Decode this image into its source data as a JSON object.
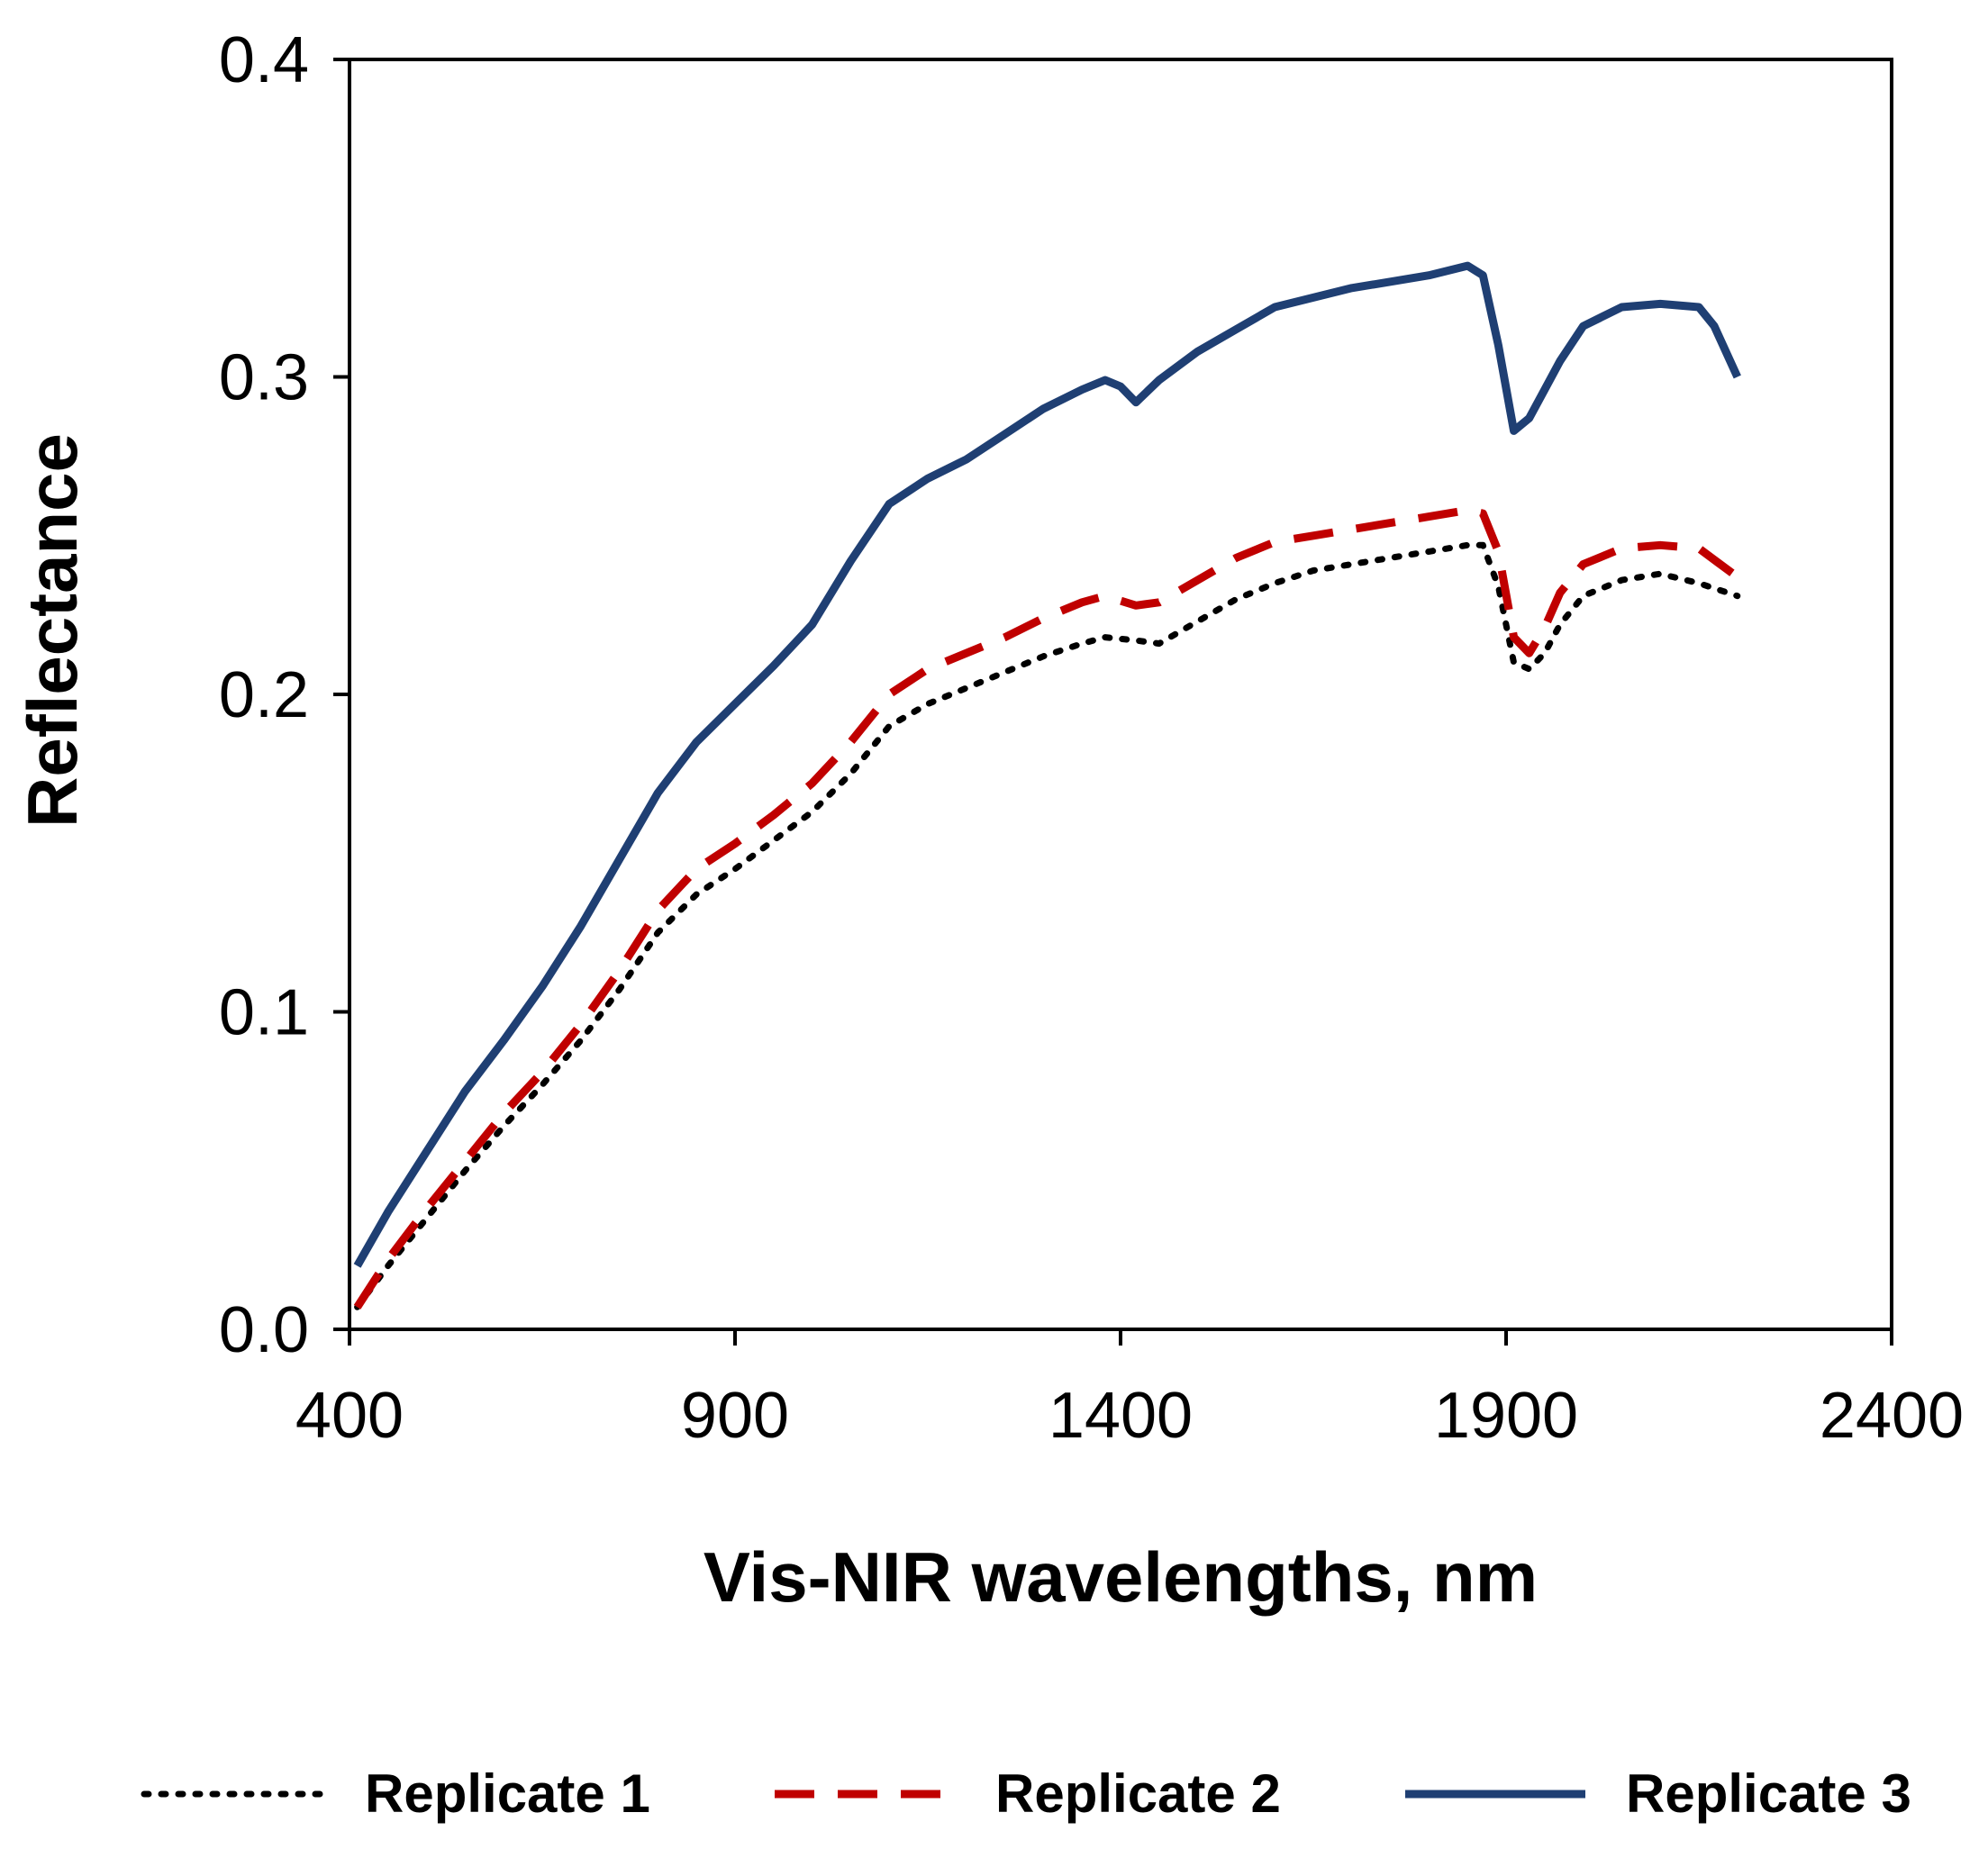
{
  "chart_data": {
    "type": "line",
    "title": "",
    "xlabel": "Vis-NIR wavelengths, nm",
    "ylabel": "Reflectance",
    "xlim": [
      400,
      2400
    ],
    "ylim": [
      0,
      0.4
    ],
    "x_ticks": [
      400,
      900,
      1400,
      1900,
      2400
    ],
    "x_tick_labels": [
      "400",
      "900",
      "1400",
      "1900",
      "2400"
    ],
    "y_ticks": [
      0,
      0.1,
      0.2,
      0.3,
      0.4
    ],
    "y_tick_labels": [
      "0.0",
      "0.1",
      "0.2",
      "0.3",
      "0.4"
    ],
    "grid": false,
    "legend_position": "bottom",
    "series": [
      {
        "name": "Replicate 1",
        "color": "#000000",
        "style": "dotted",
        "x": [
          410,
          450,
          500,
          550,
          600,
          650,
          700,
          750,
          800,
          850,
          900,
          950,
          1000,
          1050,
          1100,
          1150,
          1200,
          1250,
          1300,
          1350,
          1380,
          1420,
          1450,
          1500,
          1550,
          1600,
          1650,
          1700,
          1750,
          1800,
          1850,
          1870,
          1890,
          1910,
          1930,
          1950,
          1970,
          2000,
          2050,
          2100,
          2150,
          2200
        ],
        "y": [
          0.007,
          0.02,
          0.035,
          0.05,
          0.064,
          0.077,
          0.091,
          0.107,
          0.125,
          0.137,
          0.145,
          0.154,
          0.163,
          0.175,
          0.19,
          0.197,
          0.202,
          0.207,
          0.212,
          0.216,
          0.218,
          0.217,
          0.216,
          0.223,
          0.23,
          0.235,
          0.239,
          0.241,
          0.243,
          0.245,
          0.247,
          0.247,
          0.234,
          0.21,
          0.208,
          0.213,
          0.222,
          0.231,
          0.236,
          0.238,
          0.235,
          0.231
        ]
      },
      {
        "name": "Replicate 2",
        "color": "#c00000",
        "style": "dashed",
        "x": [
          410,
          450,
          500,
          550,
          600,
          650,
          700,
          750,
          800,
          850,
          900,
          950,
          1000,
          1050,
          1100,
          1150,
          1200,
          1250,
          1300,
          1350,
          1380,
          1420,
          1450,
          1500,
          1550,
          1600,
          1650,
          1700,
          1750,
          1800,
          1850,
          1870,
          1890,
          1910,
          1930,
          1950,
          1970,
          2000,
          2050,
          2100,
          2150,
          2200
        ],
        "y": [
          0.007,
          0.022,
          0.038,
          0.053,
          0.068,
          0.081,
          0.096,
          0.113,
          0.132,
          0.145,
          0.153,
          0.162,
          0.172,
          0.185,
          0.2,
          0.208,
          0.213,
          0.218,
          0.224,
          0.229,
          0.231,
          0.228,
          0.229,
          0.236,
          0.243,
          0.248,
          0.25,
          0.252,
          0.254,
          0.256,
          0.258,
          0.257,
          0.245,
          0.218,
          0.213,
          0.221,
          0.232,
          0.241,
          0.246,
          0.247,
          0.246,
          0.237
        ]
      },
      {
        "name": "Replicate 3",
        "color": "#1f3f73",
        "style": "solid",
        "x": [
          410,
          450,
          500,
          550,
          600,
          650,
          700,
          750,
          800,
          850,
          900,
          950,
          1000,
          1050,
          1100,
          1150,
          1200,
          1250,
          1300,
          1350,
          1380,
          1400,
          1420,
          1450,
          1500,
          1550,
          1600,
          1650,
          1700,
          1750,
          1800,
          1850,
          1870,
          1890,
          1910,
          1930,
          1950,
          1970,
          2000,
          2050,
          2100,
          2150,
          2170,
          2200
        ],
        "y": [
          0.02,
          0.037,
          0.056,
          0.075,
          0.091,
          0.108,
          0.127,
          0.148,
          0.169,
          0.185,
          0.197,
          0.209,
          0.222,
          0.242,
          0.26,
          0.268,
          0.274,
          0.282,
          0.29,
          0.296,
          0.299,
          0.297,
          0.292,
          0.299,
          0.308,
          0.315,
          0.322,
          0.325,
          0.328,
          0.33,
          0.332,
          0.335,
          0.332,
          0.31,
          0.283,
          0.287,
          0.296,
          0.305,
          0.316,
          0.322,
          0.323,
          0.322,
          0.316,
          0.3
        ]
      }
    ]
  }
}
